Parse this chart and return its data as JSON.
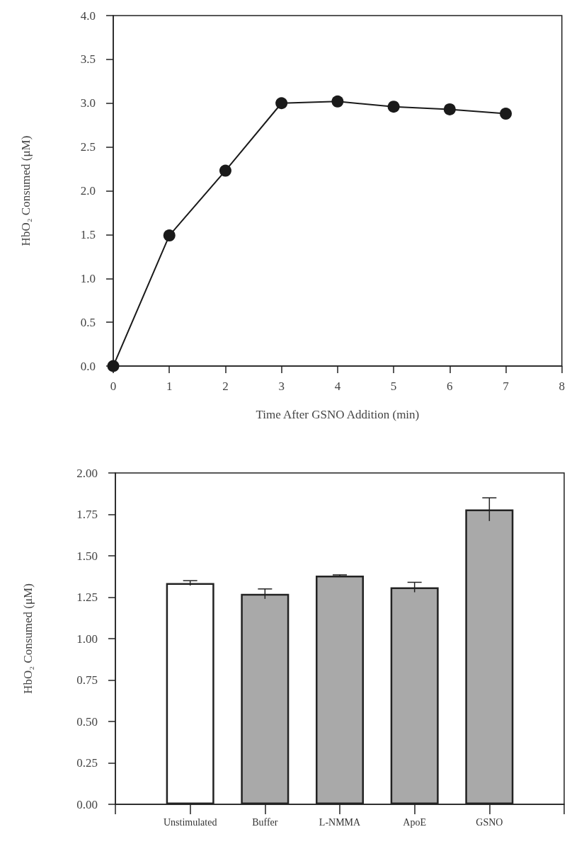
{
  "chart_data": [
    {
      "type": "line",
      "xlabel": "Time After GSNO Addition (min)",
      "ylabel": "HbO₂ Consumed (μM)",
      "x": [
        0,
        1,
        2,
        3,
        4,
        5,
        6,
        7
      ],
      "values": [
        0,
        1.49,
        2.23,
        3.0,
        3.02,
        2.96,
        2.93,
        2.88
      ],
      "color": "#1a1a1a",
      "marker": "circle",
      "line_style": "solid",
      "xlim": [
        0,
        8
      ],
      "xticks": [
        0,
        1,
        2,
        3,
        4,
        5,
        6,
        7,
        8
      ],
      "ylim": [
        0,
        4
      ],
      "yticks": [
        {
          "value": 0,
          "label": "0.0"
        },
        {
          "value": 0.5,
          "label": "0.5"
        },
        {
          "value": 1,
          "label": "1.0"
        },
        {
          "value": 1.5,
          "label": "1.5"
        },
        {
          "value": 2,
          "label": "2.0"
        },
        {
          "value": 2.5,
          "label": "2.5"
        },
        {
          "value": 3,
          "label": "3.0"
        },
        {
          "value": 3.5,
          "label": "3.5"
        },
        {
          "value": 4,
          "label": "4.0"
        }
      ]
    },
    {
      "type": "bar",
      "ylabel": "HbO₂ Consumed (μM)",
      "categories": [
        null,
        "Unstimulated",
        "Buffer",
        "L-NMMA",
        "ApoE",
        "GSNO",
        null
      ],
      "values": [
        null,
        1.335,
        1.27,
        1.38,
        1.31,
        1.78,
        null
      ],
      "errors": [
        null,
        0.015,
        0.03,
        0.005,
        0.03,
        0.07,
        null
      ],
      "colors": [
        "#ffffff",
        "#ffffff",
        "#a9a9a9",
        "#a9a9a9",
        "#a9a9a9",
        "#a9a9a9",
        "#ffffff"
      ],
      "ylim": [
        0,
        2
      ],
      "yticks": [
        {
          "value": 0,
          "label": "0.00"
        },
        {
          "value": 0.25,
          "label": "0.25"
        },
        {
          "value": 0.5,
          "label": "0.50"
        },
        {
          "value": 0.75,
          "label": "0.75"
        },
        {
          "value": 1,
          "label": "1.00"
        },
        {
          "value": 1.25,
          "label": "1.25"
        },
        {
          "value": 1.5,
          "label": "1.50"
        },
        {
          "value": 1.75,
          "label": "1.75"
        },
        {
          "value": 2,
          "label": "2.00"
        }
      ]
    }
  ]
}
